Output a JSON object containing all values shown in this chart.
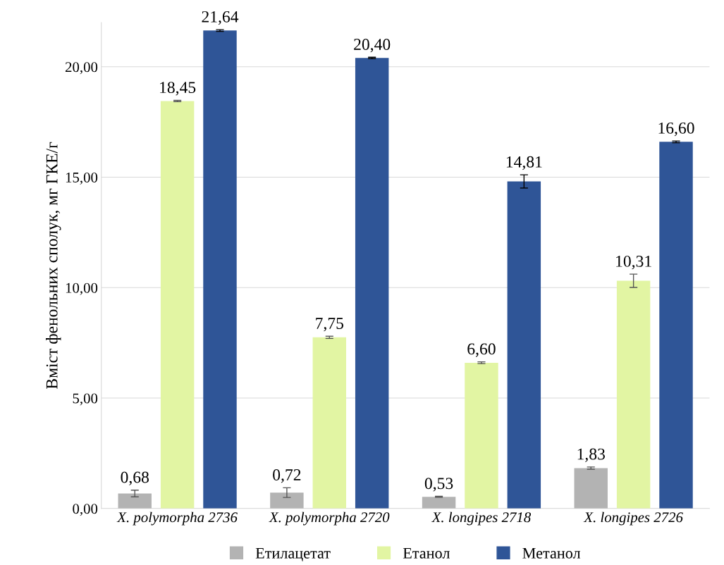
{
  "chart_data": {
    "type": "bar",
    "ylabel": "Вміст фенольних сполук, мг ГКЕ/г",
    "categories": [
      "X. polymorpha 2736",
      "X. polymorpha 2720",
      "X. longipes 2718",
      "X. longipes 2726"
    ],
    "series": [
      {
        "name": "Етилацетат",
        "color": "#b3b3b3",
        "values": [
          0.68,
          0.72,
          0.53,
          1.83
        ],
        "errors": [
          0.15,
          0.22,
          0.02,
          0.05
        ],
        "value_labels": [
          "0,68",
          "0,72",
          "0,53",
          "1,83"
        ]
      },
      {
        "name": "Етанол",
        "color": "#e2f5a3",
        "values": [
          18.45,
          7.75,
          6.6,
          10.31
        ],
        "errors": [
          0.03,
          0.05,
          0.04,
          0.3
        ],
        "value_labels": [
          "18,45",
          "7,75",
          "6,60",
          "10,31"
        ]
      },
      {
        "name": "Метанол",
        "color": "#2f5597",
        "values": [
          21.64,
          20.4,
          14.81,
          16.6
        ],
        "errors": [
          0.04,
          0.03,
          0.3,
          0.04
        ],
        "value_labels": [
          "21,64",
          "20,40",
          "14,81",
          "16,60"
        ]
      }
    ],
    "ylim": [
      0,
      22
    ],
    "yticks": [
      {
        "value": 0,
        "label": "0,00"
      },
      {
        "value": 5,
        "label": "5,00"
      },
      {
        "value": 10,
        "label": "10,00"
      },
      {
        "value": 15,
        "label": "15,00"
      },
      {
        "value": 20,
        "label": "20,00"
      }
    ],
    "grid": "y",
    "legend": "bottom"
  }
}
